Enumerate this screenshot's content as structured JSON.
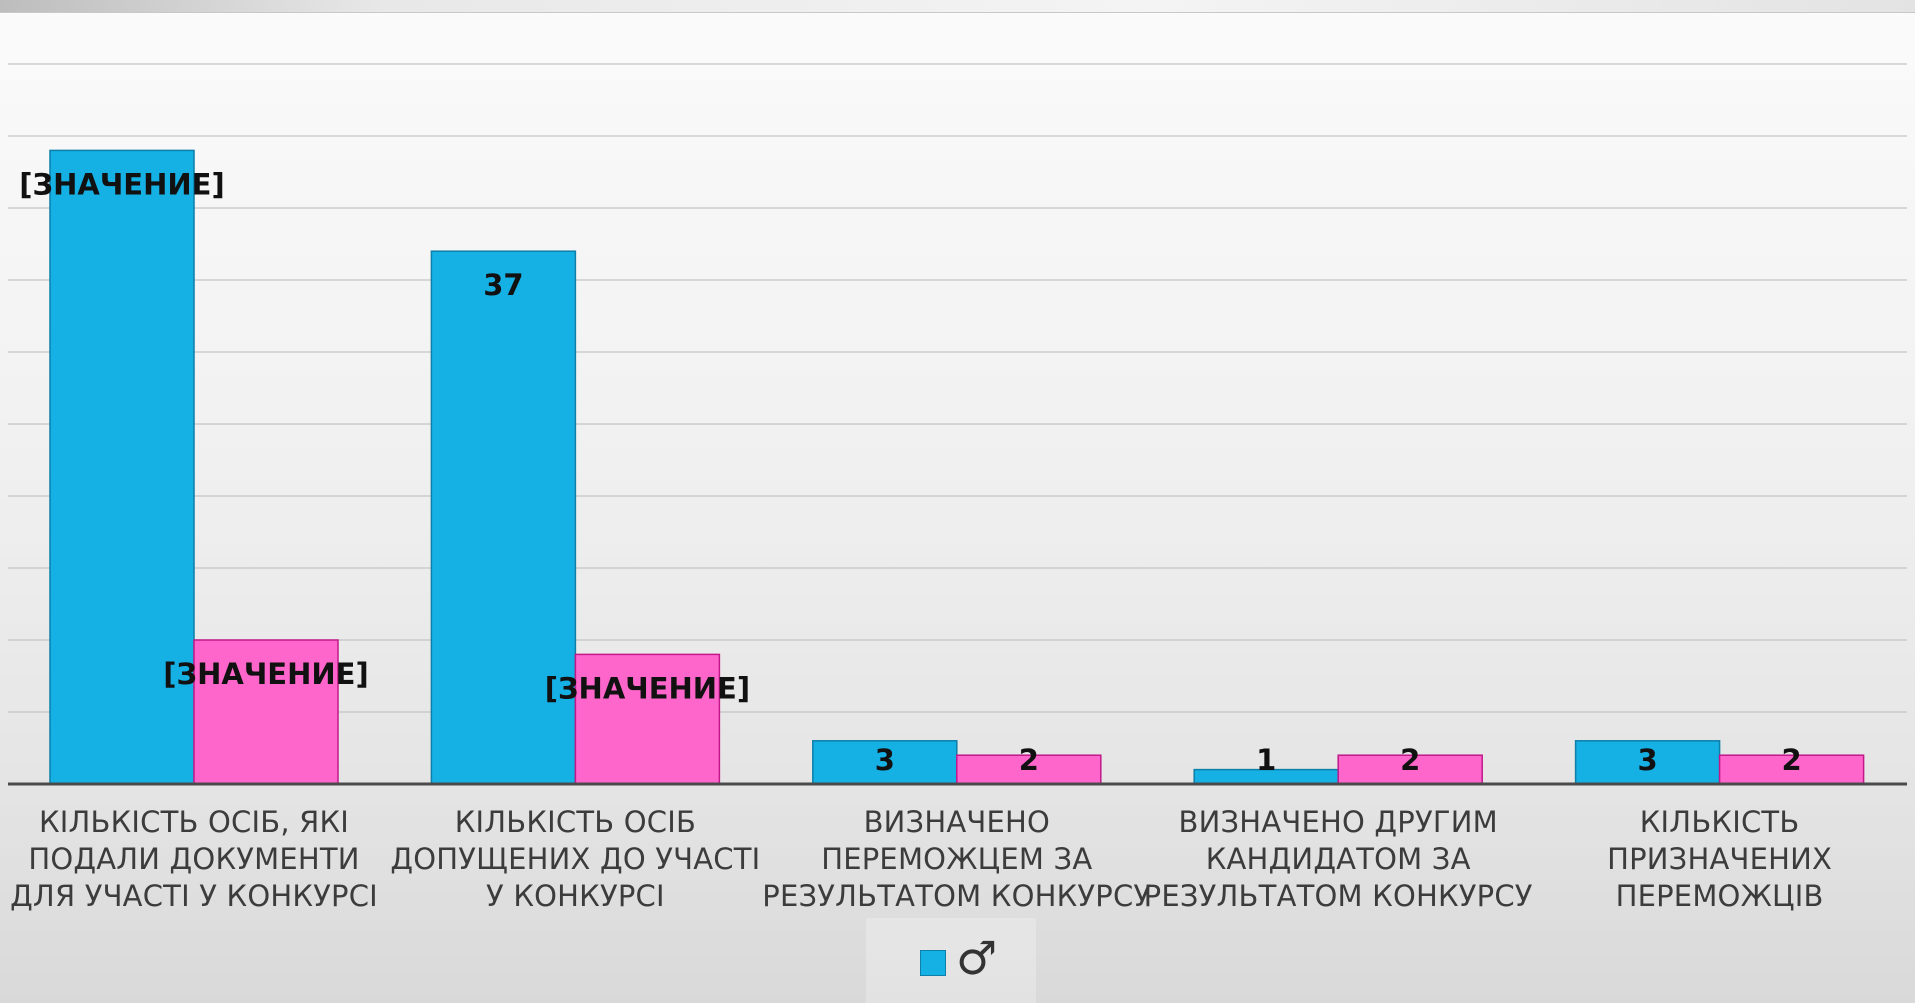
{
  "chart_data": {
    "type": "bar",
    "categories": [
      "КІЛЬКІСТЬ ОСІБ, ЯКІ\nПОДАЛИ ДОКУМЕНТИ\nДЛЯ УЧАСТІ У КОНКУРСІ",
      "КІЛЬКІСТЬ ОСІБ\nДОПУЩЕНИХ ДО УЧАСТІ\nУ КОНКУРСІ",
      "ВИЗНАЧЕНО\nПЕРЕМОЖЦЕМ ЗА\nРЕЗУЛЬТАТОМ КОНКУРСУ",
      "ВИЗНАЧЕНО ДРУГИМ\nКАНДИДАТОМ ЗА\nРЕЗУЛЬТАТОМ КОНКУРСУ",
      "КІЛЬКІСТЬ ПРИЗНАЧЕНИХ\nПЕРЕМОЖЦІВ"
    ],
    "series": [
      {
        "name": "♂",
        "color": "#15b0e4",
        "values": [
          44,
          37,
          3,
          1,
          3
        ],
        "labels": [
          "[ЗНАЧЕНИЕ]",
          "37",
          "3",
          "1",
          "3"
        ]
      },
      {
        "color": "#ff66cc",
        "values": [
          10,
          9,
          2,
          2,
          2
        ],
        "labels": [
          "[ЗНАЧЕНИЕ]",
          "[ЗНАЧЕНИЕ]",
          "2",
          "2",
          "2"
        ]
      }
    ],
    "ylim": [
      0,
      50
    ],
    "gridlines": true,
    "legend_position": "bottom",
    "title": "",
    "xlabel": "",
    "ylabel": ""
  },
  "legend": {
    "label": "♂"
  }
}
